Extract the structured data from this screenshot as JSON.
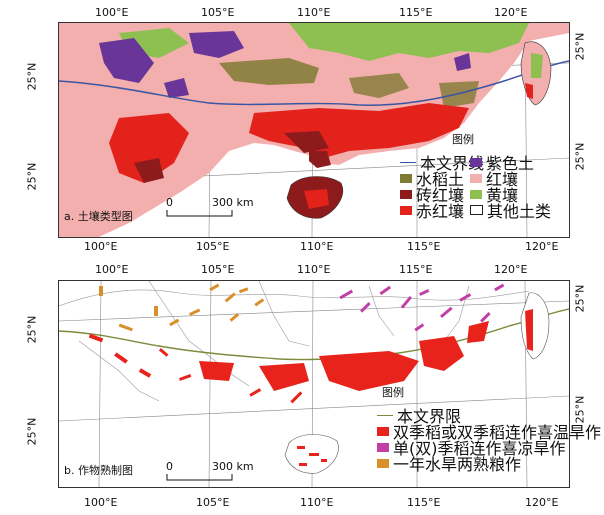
{
  "panel_a": {
    "title": "a. 土壤类型图",
    "legend_title": "图例",
    "legend": [
      {
        "label": "本文界线",
        "kind": "line",
        "color": "#3a55a3"
      },
      {
        "label": "水稻土",
        "kind": "fill",
        "color": "#7f7a34"
      },
      {
        "label": "砖红壤",
        "kind": "fill",
        "color": "#8e1b1b"
      },
      {
        "label": "赤红壤",
        "kind": "fill",
        "color": "#e3231b"
      },
      {
        "label": "紫色土",
        "kind": "fill",
        "color": "#6a3598"
      },
      {
        "label": "红壤",
        "kind": "fill",
        "color": "#f3aeae"
      },
      {
        "label": "黄壤",
        "kind": "fill",
        "color": "#8dc050"
      },
      {
        "label": "其他土类",
        "kind": "outline",
        "color": "#ffffff"
      }
    ],
    "scale": {
      "zero": "0",
      "distance": "300 km"
    },
    "lon_labels": [
      "100°E",
      "105°E",
      "110°E",
      "115°E",
      "120°E"
    ],
    "lat_labels": [
      "25°N",
      "25°N"
    ]
  },
  "panel_b": {
    "title": "b. 作物熟制图",
    "legend_title": "图例",
    "legend": [
      {
        "label": "本文界限",
        "kind": "line",
        "color": "#7d8b3c"
      },
      {
        "label": "双季稻或双季稻连作喜温旱作",
        "kind": "fill",
        "color": "#e8231b"
      },
      {
        "label": "单(双)季稻连作喜凉旱作",
        "kind": "fill",
        "color": "#c23fa6"
      },
      {
        "label": "一年水旱两熟粮作",
        "kind": "fill",
        "color": "#d98f2a"
      }
    ],
    "scale": {
      "zero": "0",
      "distance": "300 km"
    },
    "lon_labels": [
      "100°E",
      "105°E",
      "110°E",
      "115°E",
      "120°E"
    ],
    "lat_labels": [
      "25°N",
      "25°N"
    ]
  },
  "colors": {
    "border": "#333333",
    "graticule": "#888888",
    "admin": "#9a9a9a"
  }
}
